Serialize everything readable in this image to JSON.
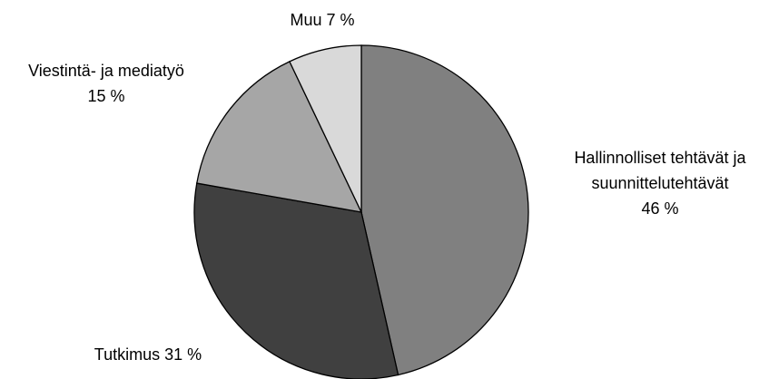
{
  "chart_data": {
    "type": "pie",
    "categories": [
      "Hallinnolliset tehtävät ja suunnittelutehtävät",
      "Tutkimus",
      "Viestintä- ja mediatyö",
      "Muu"
    ],
    "values": [
      46,
      31,
      15,
      7
    ],
    "value_labels": [
      "46 %",
      "31 %",
      "15 %",
      "7 %"
    ],
    "colors": [
      "#808080",
      "#404040",
      "#a6a6a6",
      "#d9d9d9"
    ]
  }
}
